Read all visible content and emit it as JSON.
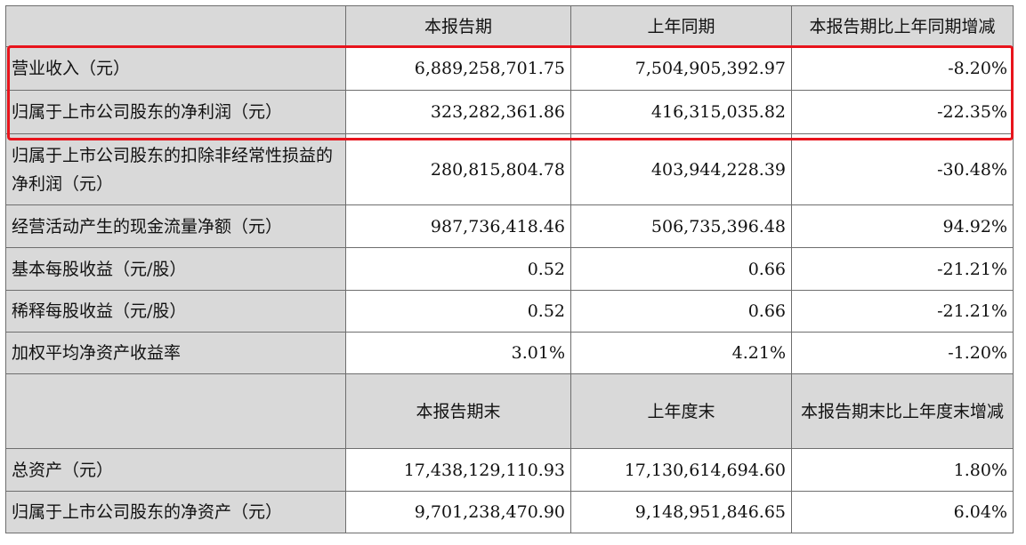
{
  "header_period": {
    "current": "本报告期",
    "prior": "上年同期",
    "change": "本报告期比上年同期增减"
  },
  "period_rows": [
    {
      "label": "营业收入（元）",
      "current": "6,889,258,701.75",
      "prior": "7,504,905,392.97",
      "change": "-8.20%"
    },
    {
      "label": "归属于上市公司股东的净利润（元）",
      "current": "323,282,361.86",
      "prior": "416,315,035.82",
      "change": "-22.35%"
    },
    {
      "label": "归属于上市公司股东的扣除非经常性损益的净利润（元）",
      "current": "280,815,804.78",
      "prior": "403,944,228.39",
      "change": "-30.48%"
    },
    {
      "label": "经营活动产生的现金流量净额（元）",
      "current": "987,736,418.46",
      "prior": "506,735,396.48",
      "change": "94.92%"
    },
    {
      "label": "基本每股收益（元/股）",
      "current": "0.52",
      "prior": "0.66",
      "change": "-21.21%"
    },
    {
      "label": "稀释每股收益（元/股）",
      "current": "0.52",
      "prior": "0.66",
      "change": "-21.21%"
    },
    {
      "label": "加权平均净资产收益率",
      "current": "3.01%",
      "prior": "4.21%",
      "change": "-1.20%"
    }
  ],
  "header_end": {
    "current": "本报告期末",
    "prior": "上年度末",
    "change": "本报告期末比上年度末增减"
  },
  "end_rows": [
    {
      "label": "总资产（元）",
      "current": "17,438,129,110.93",
      "prior": "17,130,614,694.60",
      "change": "1.80%"
    },
    {
      "label": "归属于上市公司股东的净资产（元）",
      "current": "9,701,238,470.90",
      "prior": "9,148,951,846.65",
      "change": "6.04%"
    }
  ],
  "colors": {
    "header_bg": "#d9d9d9",
    "highlight_border": "#e8141c"
  }
}
